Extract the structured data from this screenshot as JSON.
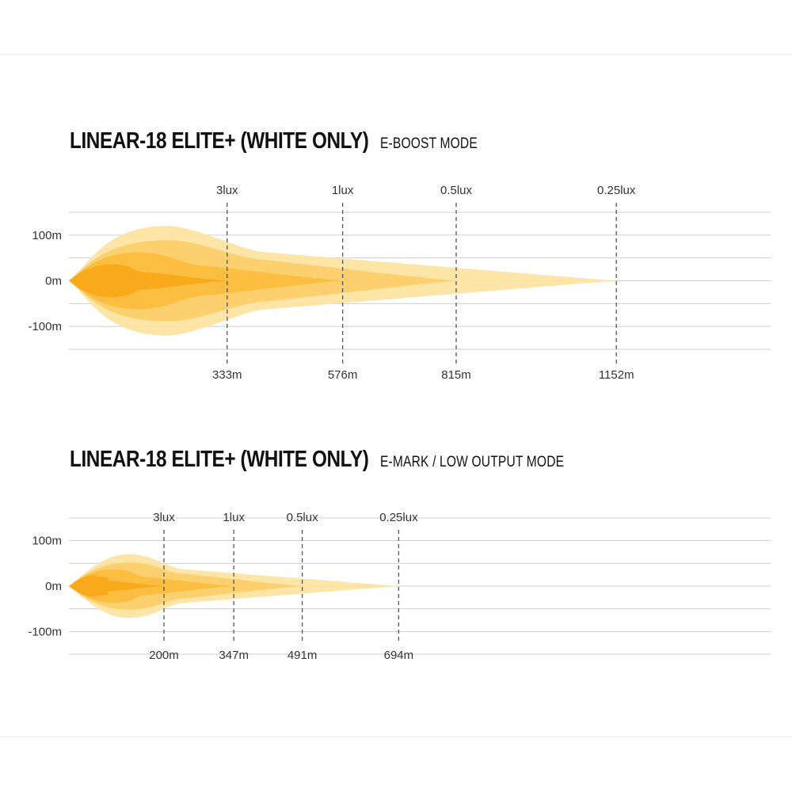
{
  "colors": {
    "grid": "#cfcfcf",
    "marker": "#555555",
    "beam_outer": "#fde3a2",
    "beam_mid": "#fccf6c",
    "beam_inner": "#fbbd3e",
    "beam_core": "#f9a91a"
  },
  "chart_data": [
    {
      "type": "area",
      "title": "LINEAR-18 ELITE+ (WHITE ONLY)",
      "subtitle": "E-BOOST MODE",
      "y_ticks": [
        "100m",
        "0m",
        "-100m"
      ],
      "ylim": [
        -150,
        150
      ],
      "x_max": 1550,
      "illuminance_markers": [
        {
          "lux_label": "3lux",
          "distance": 333,
          "distance_label": "333m"
        },
        {
          "lux_label": "1lux",
          "distance": 576,
          "distance_label": "576m"
        },
        {
          "lux_label": "0.5lux",
          "distance": 815,
          "distance_label": "815m"
        },
        {
          "lux_label": "0.25lux",
          "distance": 1152,
          "distance_label": "1152m"
        }
      ],
      "beam_half_width_m": 120
    },
    {
      "type": "area",
      "title": "LINEAR-18 ELITE+ (WHITE ONLY)",
      "subtitle": "E-MARK / LOW OUTPUT MODE",
      "y_ticks": [
        "100m",
        "0m",
        "-100m"
      ],
      "ylim": [
        -150,
        150
      ],
      "x_max": 1550,
      "illuminance_markers": [
        {
          "lux_label": "3lux",
          "distance": 200,
          "distance_label": "200m"
        },
        {
          "lux_label": "1lux",
          "distance": 347,
          "distance_label": "347m"
        },
        {
          "lux_label": "0.5lux",
          "distance": 491,
          "distance_label": "491m"
        },
        {
          "lux_label": "0.25lux",
          "distance": 694,
          "distance_label": "694m"
        }
      ],
      "beam_half_width_m": 70
    }
  ]
}
